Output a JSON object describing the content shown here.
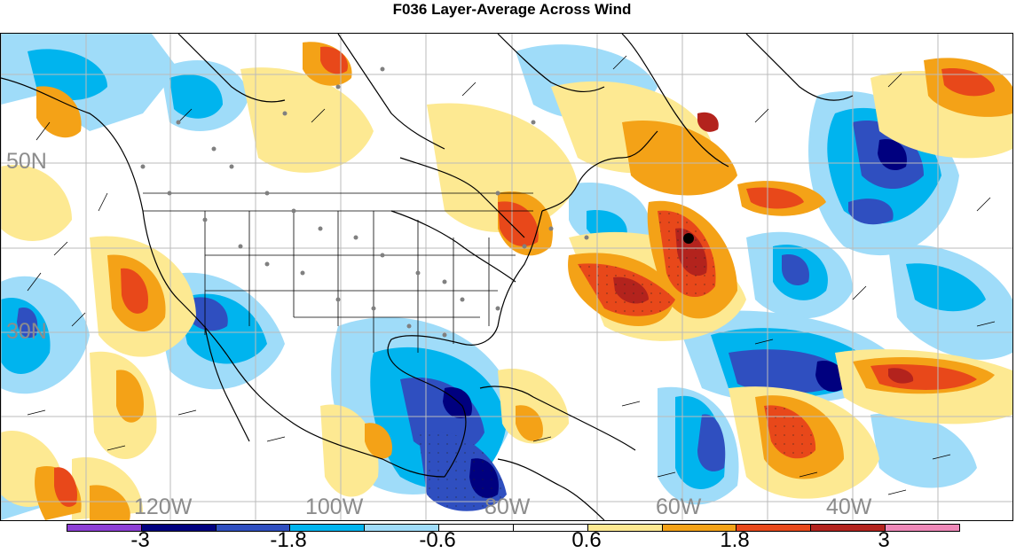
{
  "title": "F036 Layer-Average Across Wind",
  "lat_labels": [
    "50N",
    "30N"
  ],
  "lon_labels": [
    "120W",
    "100W",
    "80W",
    "60W",
    "40W"
  ],
  "colorbar": {
    "colors": [
      "#8d3fd6",
      "#00007f",
      "#2f4fc0",
      "#00b4ee",
      "#9fdcf9",
      "#ffffff",
      "#ffffff",
      "#fde992",
      "#f4a217",
      "#e8481a",
      "#b3231d",
      "#ee88b8"
    ],
    "labels": [
      "-3",
      "-1.8",
      "-0.6",
      "0.6",
      "1.8",
      "3"
    ]
  }
}
